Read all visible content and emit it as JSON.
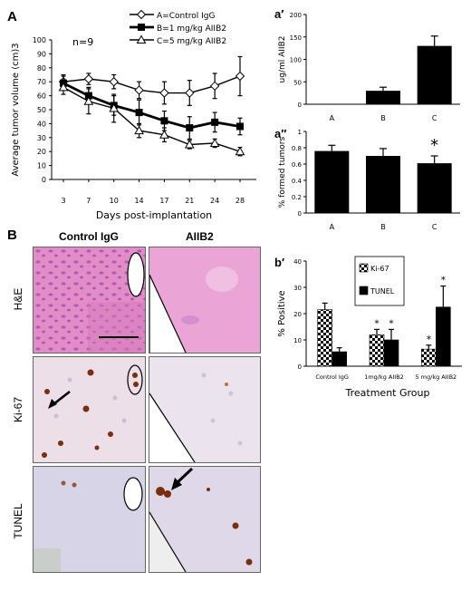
{
  "panel_letters": {
    "a": "A",
    "a_prime": "a′",
    "a_dprime": "a″",
    "b": "B",
    "b_prime": "b′"
  },
  "colors": {
    "black": "#000000",
    "white": "#ffffff",
    "he_pink": "#e690c8",
    "ihc_bg": "#e8e2ef",
    "tunel_bg": "#d9d3e6",
    "brown": "#7a2e0c"
  },
  "chart_data": [
    {
      "id": "A",
      "type": "line",
      "title": "",
      "annotation": "n=9",
      "xlabel": "Days post-implantation",
      "ylabel": "Average tumor volume (cm)3",
      "categories": [
        "3",
        "7",
        "10",
        "14",
        "17",
        "21",
        "24",
        "28"
      ],
      "ylim": [
        0,
        100
      ],
      "yticks": [
        0,
        10,
        20,
        30,
        40,
        50,
        60,
        70,
        80,
        90,
        100
      ],
      "legend_position": "top-right",
      "series": [
        {
          "name": "A=Control IgG",
          "marker": "diamond-open",
          "values": [
            70,
            72,
            70,
            64,
            62,
            62,
            67,
            74
          ],
          "errors": [
            5,
            4,
            5,
            6,
            8,
            9,
            9,
            14
          ]
        },
        {
          "name": "B=1 mg/kg AIIB2",
          "marker": "square-filled",
          "values": [
            69,
            60,
            53,
            48,
            42,
            37,
            41,
            38
          ],
          "errors": [
            5,
            6,
            7,
            9,
            7,
            8,
            7,
            6
          ]
        },
        {
          "name": "C=5 mg/kg AIIB2",
          "marker": "triangle-open",
          "values": [
            66,
            56,
            51,
            35,
            32,
            25,
            26,
            20
          ],
          "errors": [
            5,
            9,
            10,
            5,
            5,
            3,
            3,
            3
          ]
        }
      ]
    },
    {
      "id": "a_prime",
      "type": "bar",
      "title": "",
      "ylabel": "ug/ml AIIB2",
      "categories": [
        "A",
        "B",
        "C"
      ],
      "values": [
        0,
        30,
        130
      ],
      "errors": [
        0,
        8,
        22
      ],
      "ylim": [
        0,
        200
      ],
      "yticks": [
        0,
        50,
        100,
        150,
        200
      ]
    },
    {
      "id": "a_dprime",
      "type": "bar",
      "title": "",
      "ylabel": "% formed tumors",
      "categories": [
        "A",
        "B",
        "C"
      ],
      "values": [
        0.76,
        0.7,
        0.61
      ],
      "errors": [
        0.07,
        0.09,
        0.09
      ],
      "ylim": [
        0,
        1
      ],
      "yticks": [
        "0",
        "0.2",
        "0.4",
        "0.6",
        "0.8",
        "1"
      ],
      "significance": [
        "",
        "",
        "*"
      ]
    },
    {
      "id": "b_prime",
      "type": "bar",
      "title": "",
      "xlabel": "Treatment Group",
      "ylabel": "% Positive",
      "categories": [
        "Control IgG",
        "1mg/kg AIIB2",
        "5 mg/kg AIIB2"
      ],
      "ylim": [
        0,
        40
      ],
      "yticks": [
        0,
        10,
        20,
        30,
        40
      ],
      "legend_position": "top-center",
      "series": [
        {
          "name": "Ki-67",
          "pattern": "checker",
          "values": [
            21.5,
            12,
            6.5
          ],
          "errors": [
            2.5,
            2,
            1.5
          ],
          "significance": [
            "",
            "*",
            "*"
          ]
        },
        {
          "name": "TUNEL",
          "pattern": "solid",
          "values": [
            5.5,
            10,
            22.5
          ],
          "errors": [
            1.5,
            4,
            8
          ],
          "significance": [
            "",
            "*",
            "*"
          ]
        }
      ]
    }
  ],
  "micrographs": {
    "column_labels": [
      "Control IgG",
      "AIIB2"
    ],
    "row_labels": [
      "H&E",
      "Ki-67",
      "TUNEL"
    ]
  }
}
